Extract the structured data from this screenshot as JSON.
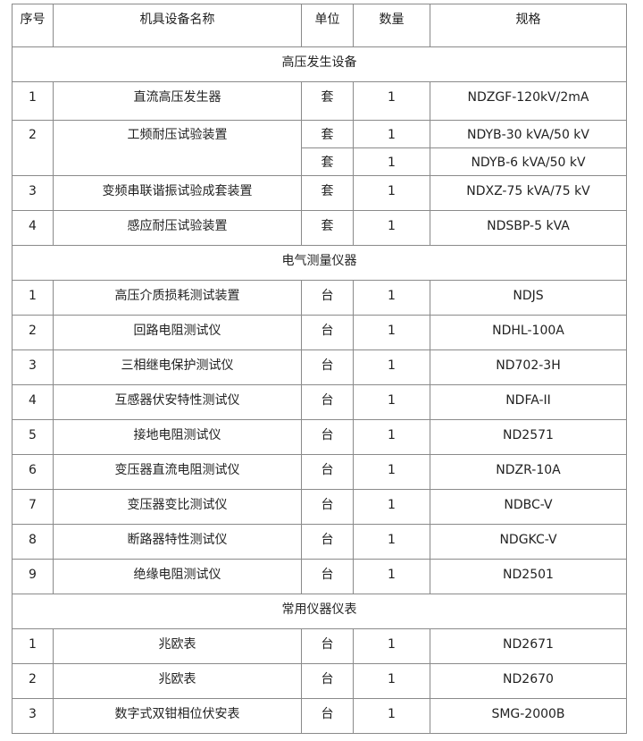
{
  "headers": [
    "序号",
    "机具设备名称",
    "单位",
    "数量",
    "规格"
  ],
  "sections": [
    {
      "title": "高压发生设备",
      "rows": [
        {
          "no": "1",
          "name": "直流高压发生器",
          "unit": "套",
          "qty": "1",
          "spec": "NDZGF-120kV/2mA"
        },
        {
          "no": "2",
          "name": "工频耐压试验装置",
          "unit": "套",
          "qty": "1",
          "spec": "NDYB-30 kVA/50 kV",
          "extra": {
            "unit": "套",
            "qty": "1",
            "spec": "NDYB-6 kVA/50 kV"
          }
        },
        {
          "no": "3",
          "name": "变频串联谐振试验成套装置",
          "unit": "套",
          "qty": "1",
          "spec": "NDXZ-75 kVA/75 kV"
        },
        {
          "no": "4",
          "name": "感应耐压试验装置",
          "unit": "套",
          "qty": "1",
          "spec": "NDSBP-5 kVA"
        }
      ]
    },
    {
      "title": "电气测量仪器",
      "rows": [
        {
          "no": "1",
          "name": "高压介质损耗测试装置",
          "unit": "台",
          "qty": "1",
          "spec": "NDJS"
        },
        {
          "no": "2",
          "name": "回路电阻测试仪",
          "unit": "台",
          "qty": "1",
          "spec": "NDHL-100A"
        },
        {
          "no": "3",
          "name": "三相继电保护测试仪",
          "unit": "台",
          "qty": "1",
          "spec": "ND702-3H"
        },
        {
          "no": "4",
          "name": "互感器伏安特性测试仪",
          "unit": "台",
          "qty": "1",
          "spec": "NDFA-II"
        },
        {
          "no": "5",
          "name": "接地电阻测试仪",
          "unit": "台",
          "qty": "1",
          "spec": "ND2571"
        },
        {
          "no": "6",
          "name": "变压器直流电阻测试仪",
          "unit": "台",
          "qty": "1",
          "spec": "NDZR-10A"
        },
        {
          "no": "7",
          "name": "变压器变比测试仪",
          "unit": "台",
          "qty": "1",
          "spec": "NDBC-V"
        },
        {
          "no": "8",
          "name": "断路器特性测试仪",
          "unit": "台",
          "qty": "1",
          "spec": "NDGKC-V"
        },
        {
          "no": "9",
          "name": "绝缘电阻测试仪",
          "unit": "台",
          "qty": "1",
          "spec": "ND2501"
        }
      ]
    },
    {
      "title": "常用仪器仪表",
      "rows": [
        {
          "no": "1",
          "name": "兆欧表",
          "unit": "台",
          "qty": "1",
          "spec": "ND2671"
        },
        {
          "no": "2",
          "name": "兆欧表",
          "unit": "台",
          "qty": "1",
          "spec": "ND2670"
        },
        {
          "no": "3",
          "name": "数字式双钳相位伏安表",
          "unit": "台",
          "qty": "1",
          "spec": "SMG-2000B"
        }
      ]
    }
  ]
}
